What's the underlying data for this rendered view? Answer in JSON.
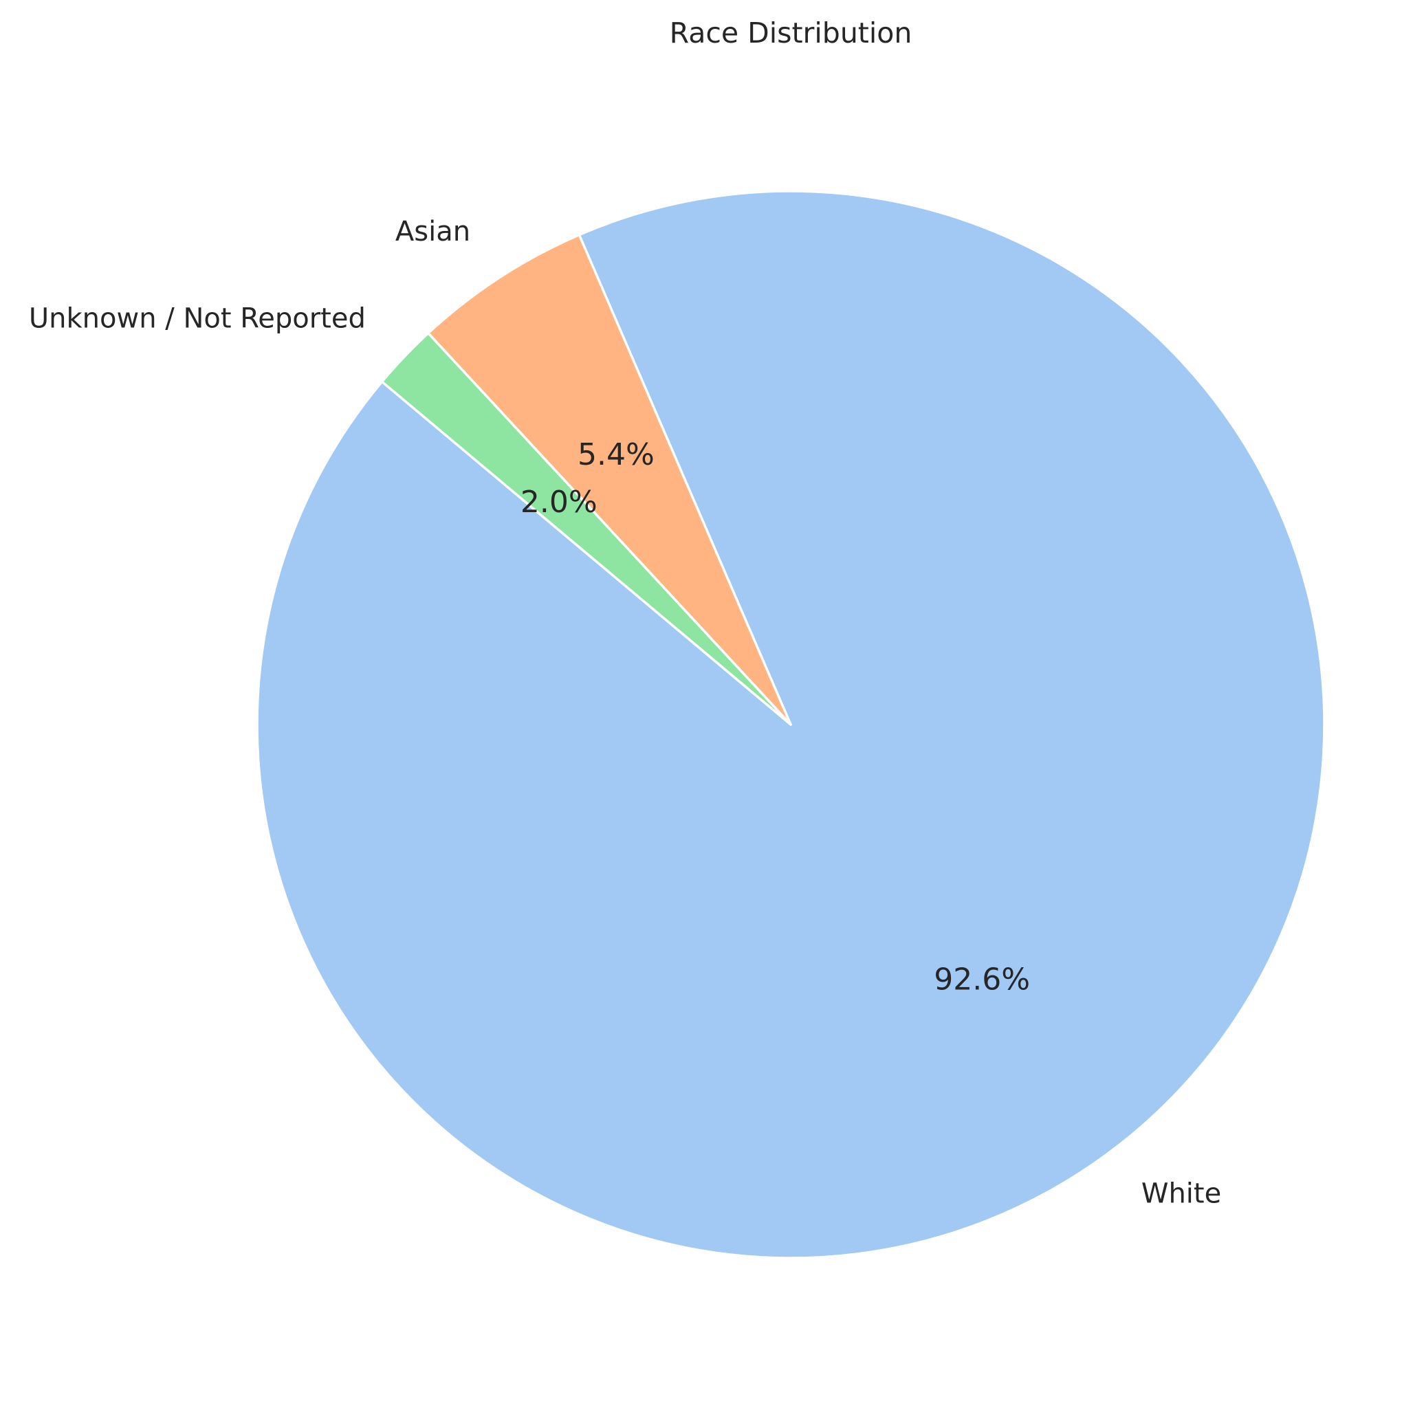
{
  "chart_data": {
    "type": "pie",
    "title": "Race Distribution",
    "slices": [
      {
        "label": "White",
        "value": 92.6,
        "pct_label": "92.6%",
        "color": "#a1c9f4"
      },
      {
        "label": "Asian",
        "value": 5.4,
        "pct_label": "5.4%",
        "color": "#ffb482"
      },
      {
        "label": "Unknown / Not Reported",
        "value": 2.0,
        "pct_label": "2.0%",
        "color": "#8de5a1"
      }
    ],
    "start_angle_deg": 140,
    "direction": "counterclockwise",
    "legend": "none"
  }
}
